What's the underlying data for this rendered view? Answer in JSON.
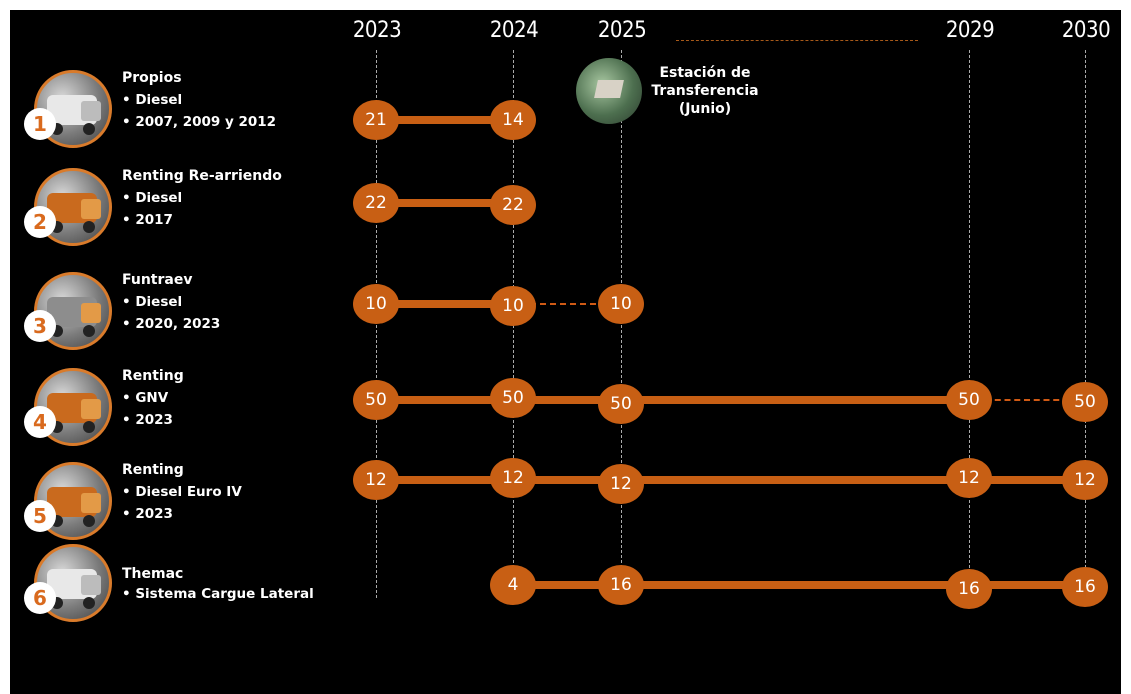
{
  "years": [
    "2023",
    "2024",
    "2025",
    "2029",
    "2030"
  ],
  "station": {
    "line1": "Estación de",
    "line2": "Transferencia",
    "line3": "(Junio)"
  },
  "fleets": [
    {
      "num": "1",
      "title": "Propios",
      "lines": [
        "• Diesel",
        "• 2007, 2009 y 2012"
      ],
      "values": [
        "21",
        "14"
      ]
    },
    {
      "num": "2",
      "title": "Renting Re-arriendo",
      "lines": [
        "• Diesel",
        "• 2017"
      ],
      "values": [
        "22",
        "22"
      ]
    },
    {
      "num": "3",
      "title": "Funtraev",
      "lines": [
        "• Diesel",
        "• 2020, 2023"
      ],
      "values": [
        "10",
        "10",
        "10"
      ]
    },
    {
      "num": "4",
      "title": "Renting",
      "lines": [
        "• GNV",
        "• 2023"
      ],
      "values": [
        "50",
        "50",
        "50",
        "50",
        "50"
      ]
    },
    {
      "num": "5",
      "title": "Renting",
      "lines": [
        "• Diesel Euro IV",
        "• 2023"
      ],
      "values": [
        "12",
        "12",
        "12",
        "12",
        "12"
      ]
    },
    {
      "num": "6",
      "title": "Themac",
      "lines": [
        "• Sistema Cargue Lateral"
      ],
      "values": [
        "4",
        "16",
        "16",
        "16"
      ]
    }
  ],
  "colors": {
    "accent": "#c85f14",
    "background": "#000000",
    "text": "#ffffff",
    "badge_text": "#d96a1e"
  },
  "icons": {
    "fleet_thumb": "garbage-truck-photo",
    "station_thumb": "transfer-station-aerial-photo"
  }
}
